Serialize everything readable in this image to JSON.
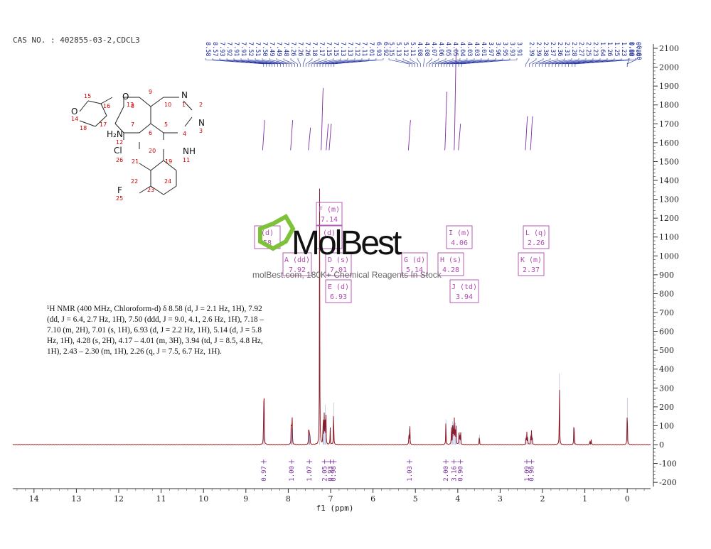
{
  "header": {
    "cas": "CAS NO. : 402855-03-2,CDCL3"
  },
  "description": "¹H NMR (400 MHz, Chloroform-d) δ 8.58 (d, J = 2.1 Hz, 1H), 7.92 (dd, J = 6.4, 2.7 Hz, 1H), 7.50 (ddd, J = 9.0, 4.1, 2.6 Hz, 1H), 7.18 – 7.10 (m, 2H), 7.01 (s, 1H), 6.93 (d, J = 2.2 Hz, 1H), 5.14 (d, J = 5.8 Hz, 1H), 4.28 (s, 2H), 4.17 – 4.01 (m, 3H), 3.94 (td, J = 8.5, 4.8 Hz, 1H), 2.43 – 2.30 (m, 1H), 2.26 (q, J = 7.5, 6.7 Hz, 1H).",
  "watermark": {
    "logo": "MolBest",
    "tagline": "molBest.com, 180K+ Chemical Reagents In Stock"
  },
  "colors": {
    "spectrum": "#a01818",
    "integral": "#7b2fa0",
    "peaklabel": "#1a2a9a",
    "box": "#b04ab0",
    "axis": "#333333"
  },
  "chart_data": {
    "type": "line",
    "xlabel": "f1 (ppm)",
    "xlim": [
      14.5,
      -0.55
    ],
    "ylim": [
      -200,
      2100
    ],
    "x_ticks": [
      14,
      13,
      12,
      11,
      10,
      9,
      8,
      7,
      6,
      5,
      4,
      3,
      2,
      1,
      0
    ],
    "y_ticks": [
      2100,
      2000,
      1900,
      1800,
      1700,
      1600,
      1500,
      1400,
      1300,
      1200,
      1100,
      1000,
      900,
      800,
      700,
      600,
      500,
      400,
      300,
      200,
      100,
      0,
      -100,
      -200
    ],
    "peaks": [
      {
        "ppm": 8.58,
        "h": 235
      },
      {
        "ppm": 8.57,
        "h": 230
      },
      {
        "ppm": 7.93,
        "h": 95
      },
      {
        "ppm": 7.92,
        "h": 100
      },
      {
        "ppm": 7.91,
        "h": 92
      },
      {
        "ppm": 7.905,
        "h": 88
      },
      {
        "ppm": 7.52,
        "h": 62
      },
      {
        "ppm": 7.51,
        "h": 66
      },
      {
        "ppm": 7.5,
        "h": 64
      },
      {
        "ppm": 7.49,
        "h": 58
      },
      {
        "ppm": 7.26,
        "h": 1360
      },
      {
        "ppm": 7.18,
        "h": 110
      },
      {
        "ppm": 7.17,
        "h": 130
      },
      {
        "ppm": 7.15,
        "h": 160
      },
      {
        "ppm": 7.13,
        "h": 220
      },
      {
        "ppm": 7.11,
        "h": 150
      },
      {
        "ppm": 7.01,
        "h": 100
      },
      {
        "ppm": 6.93,
        "h": 230
      },
      {
        "ppm": 5.15,
        "h": 90
      },
      {
        "ppm": 5.13,
        "h": 95
      },
      {
        "ppm": 4.28,
        "h": 140
      },
      {
        "ppm": 4.15,
        "h": 110
      },
      {
        "ppm": 4.12,
        "h": 130
      },
      {
        "ppm": 4.1,
        "h": 120
      },
      {
        "ppm": 4.08,
        "h": 135
      },
      {
        "ppm": 4.06,
        "h": 125
      },
      {
        "ppm": 4.04,
        "h": 100
      },
      {
        "ppm": 3.97,
        "h": 70
      },
      {
        "ppm": 3.95,
        "h": 75
      },
      {
        "ppm": 3.93,
        "h": 60
      },
      {
        "ppm": 3.49,
        "h": 60
      },
      {
        "ppm": 2.39,
        "h": 55
      },
      {
        "ppm": 2.37,
        "h": 65
      },
      {
        "ppm": 2.35,
        "h": 50
      },
      {
        "ppm": 2.28,
        "h": 60
      },
      {
        "ppm": 2.26,
        "h": 70
      },
      {
        "ppm": 2.24,
        "h": 55
      },
      {
        "ppm": 1.6,
        "h": 385
      },
      {
        "ppm": 1.26,
        "h": 100
      },
      {
        "ppm": 1.25,
        "h": 90
      },
      {
        "ppm": 0.88,
        "h": 30
      },
      {
        "ppm": 0.85,
        "h": 28
      },
      {
        "ppm": 0.0,
        "h": 255
      }
    ],
    "integrals": [
      {
        "ppm": 8.58,
        "value": "0.97"
      },
      {
        "ppm": 7.92,
        "value": "1.00"
      },
      {
        "ppm": 7.5,
        "value": "1.07"
      },
      {
        "ppm": 7.14,
        "value": "2.05"
      },
      {
        "ppm": 7.01,
        "value": "0.93"
      },
      {
        "ppm": 6.93,
        "value": "0.98"
      },
      {
        "ppm": 5.14,
        "value": "1.03"
      },
      {
        "ppm": 4.28,
        "value": "2.00"
      },
      {
        "ppm": 4.09,
        "value": "3.16"
      },
      {
        "ppm": 3.94,
        "value": "0.90"
      },
      {
        "ppm": 2.37,
        "value": "1.09"
      },
      {
        "ppm": 2.26,
        "value": "0.96"
      }
    ],
    "integral_curves": [
      {
        "ppm": 8.58,
        "ylo": 1560,
        "yhi": 1720
      },
      {
        "ppm": 7.92,
        "ylo": 1560,
        "yhi": 1720
      },
      {
        "ppm": 7.5,
        "ylo": 1560,
        "yhi": 1680
      },
      {
        "ppm": 7.2,
        "ylo": 1560,
        "yhi": 1890
      },
      {
        "ppm": 7.08,
        "ylo": 1560,
        "yhi": 1700
      },
      {
        "ppm": 7.01,
        "ylo": 1560,
        "yhi": 1700
      },
      {
        "ppm": 5.14,
        "ylo": 1560,
        "yhi": 1720
      },
      {
        "ppm": 4.28,
        "ylo": 1560,
        "yhi": 1870
      },
      {
        "ppm": 4.06,
        "ylo": 1560,
        "yhi": 2100
      },
      {
        "ppm": 3.96,
        "ylo": 1560,
        "yhi": 1700
      },
      {
        "ppm": 2.38,
        "ylo": 1560,
        "yhi": 1740
      },
      {
        "ppm": 2.26,
        "ylo": 1560,
        "yhi": 1740
      }
    ],
    "peak_labels": [
      "8.58",
      "8.57",
      "7.93",
      "7.92",
      "7.91",
      "7.91",
      "7.52",
      "7.51",
      "7.50",
      "7.49",
      "7.49",
      "7.48",
      "7.26",
      "7.26",
      "7.26",
      "7.18",
      "7.17",
      "7.15",
      "7.15",
      "7.13",
      "7.13",
      "7.12",
      "7.11",
      "7.01",
      "6.93",
      "6.92",
      "5.15",
      "5.13",
      "5.12",
      "5.11",
      "4.08",
      "4.08",
      "4.07",
      "4.06",
      "4.05",
      "4.05",
      "4.04",
      "4.03",
      "4.03",
      "4.01",
      "3.97",
      "3.96",
      "3.95",
      "3.93",
      "3.91",
      "2.39",
      "2.39",
      "2.38",
      "2.37",
      "2.36",
      "2.31",
      "2.28",
      "2.27",
      "2.25",
      "2.23",
      "1.64",
      "1.26",
      "1.25",
      "1.23",
      "0.88",
      "0.86",
      "0.00",
      "-0.00"
    ],
    "peak_label_groups": [
      {
        "from": 0,
        "to": 25,
        "x0": 8.58,
        "x1": 6.92
      },
      {
        "from": 26,
        "to": 44,
        "x0": 5.15,
        "x1": 3.91
      },
      {
        "from": 45,
        "to": 60,
        "x0": 2.39,
        "x1": 1.23
      },
      {
        "from": 61,
        "to": 62,
        "x0": 0.0,
        "x1": 0.0
      }
    ],
    "annotations": [
      {
        "label": "(d)",
        "value": "58",
        "ppm": 8.58,
        "row": 0
      },
      {
        "label": "A (dd)",
        "value": "7.92",
        "ppm": 7.92,
        "row": 1
      },
      {
        "label": "F (m)",
        "value": "7.14",
        "ppm": 7.14,
        "row": -1
      },
      {
        "label": "(d)",
        "value": "",
        "ppm": 7.3,
        "row": 0
      },
      {
        "label": "D (s)",
        "value": "7.01",
        "ppm": 7.01,
        "row": 1
      },
      {
        "label": "E (d)",
        "value": "6.93",
        "ppm": 6.93,
        "row": 2
      },
      {
        "label": "G (d)",
        "value": "5.14",
        "ppm": 5.14,
        "row": 1
      },
      {
        "label": "I (m)",
        "value": "4.06",
        "ppm": 4.06,
        "row": 0
      },
      {
        "label": "H (s)",
        "value": "4.28",
        "ppm": 4.28,
        "row": 1
      },
      {
        "label": "J (td)",
        "value": "3.94",
        "ppm": 3.94,
        "row": 2
      },
      {
        "label": "L (q)",
        "value": "2.26",
        "ppm": 2.26,
        "row": 0
      },
      {
        "label": "K (m)",
        "value": "2.37",
        "ppm": 2.37,
        "row": 1
      }
    ]
  },
  "molecule": {
    "atoms": [
      "O",
      "13",
      "15",
      "16",
      "O",
      "14",
      "18",
      "17",
      "9",
      "8",
      "10",
      "N",
      "1",
      "2",
      "N",
      "3",
      "7",
      "6",
      "5",
      "4",
      "H₂N",
      "12",
      "NH",
      "11",
      "Cl",
      "26",
      "20",
      "21",
      "19",
      "22",
      "24",
      "23",
      "F",
      "25"
    ]
  }
}
